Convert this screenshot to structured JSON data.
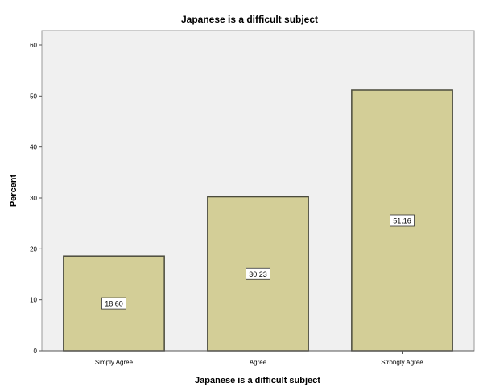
{
  "chart_data": {
    "type": "bar",
    "title": "Japanese is a difficult subject",
    "xlabel": "Japanese is a difficult subject",
    "ylabel": "Percent",
    "categories": [
      "Simply Agree",
      "Agree",
      "Strongly Agree"
    ],
    "values": [
      18.6,
      30.23,
      51.16
    ],
    "data_labels": [
      "18.60",
      "30.23",
      "51.16"
    ],
    "ylim": [
      0,
      60
    ],
    "yticks": [
      "0",
      "10",
      "20",
      "30",
      "40",
      "50",
      "60"
    ],
    "grid": false,
    "colors": {
      "plot_background": "#f0f0f0",
      "bar_fill": "#d3ce97",
      "bar_stroke": "#4b4b3c"
    }
  }
}
